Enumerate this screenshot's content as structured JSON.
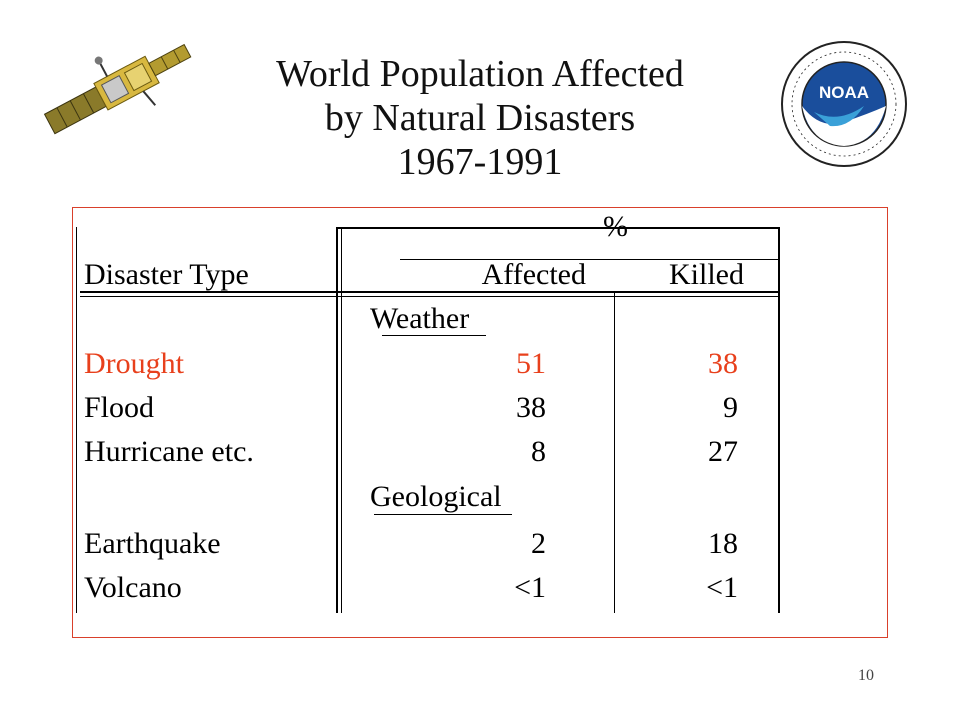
{
  "title": {
    "line1": "World Population Affected",
    "line2": "by Natural Disasters",
    "line3": "1967-1991"
  },
  "logo": {
    "noaa_text": "NOAA"
  },
  "table": {
    "percent_label": "%",
    "headers": {
      "type": "Disaster Type",
      "affected": "Affected",
      "killed": "Killed"
    },
    "sections": [
      {
        "name": "Weather",
        "rows": [
          {
            "type": "Drought",
            "affected": "51",
            "killed": "38",
            "highlight": "#e8401c"
          },
          {
            "type": "Flood",
            "affected": "38",
            "killed": "9"
          },
          {
            "type": "Hurricane etc.",
            "affected": "8",
            "killed": "27"
          }
        ]
      },
      {
        "name": "Geological",
        "rows": [
          {
            "type": "Earthquake",
            "affected": "2",
            "killed": "18"
          },
          {
            "type": "Volcano",
            "affected": "<1",
            "killed": "<1"
          }
        ]
      }
    ]
  },
  "slide_number": "10",
  "colors": {
    "frame": "#d9402b",
    "highlight": "#e8401c",
    "noaa_blue": "#1a4e9c"
  }
}
